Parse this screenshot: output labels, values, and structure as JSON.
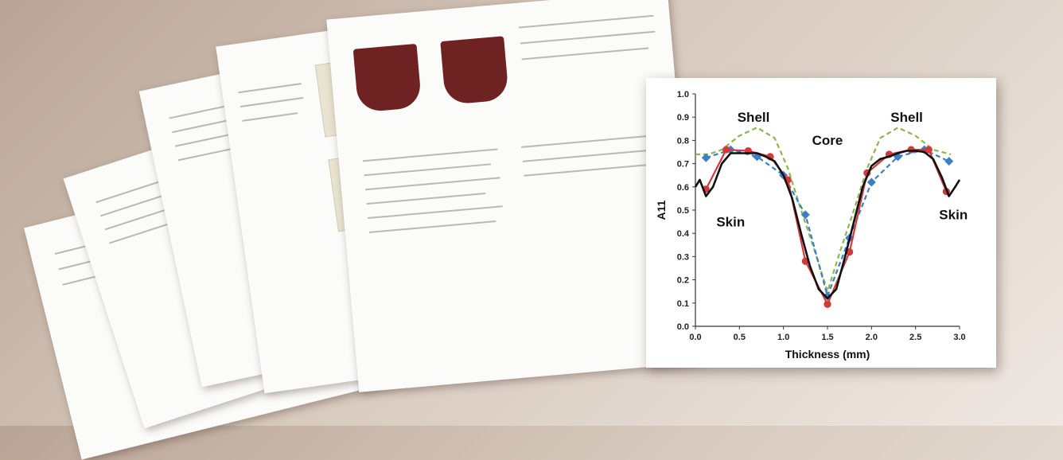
{
  "chart_data": {
    "type": "line",
    "xlabel": "Thickness (mm)",
    "ylabel": "A11",
    "xlim": [
      0,
      3.0
    ],
    "ylim": [
      0,
      1.0
    ],
    "xticks": [
      "0.0",
      "0.5",
      "1.0",
      "1.5",
      "2.0",
      "2.5",
      "3.0"
    ],
    "yticks": [
      "0.0",
      "0.1",
      "0.2",
      "0.3",
      "0.4",
      "0.5",
      "0.6",
      "0.7",
      "0.8",
      "0.9",
      "1.0"
    ],
    "grid": false,
    "annotations": [
      {
        "text": "Shell",
        "x": 0.66,
        "y": 0.88
      },
      {
        "text": "Shell",
        "x": 2.4,
        "y": 0.88
      },
      {
        "text": "Core",
        "x": 1.5,
        "y": 0.78
      },
      {
        "text": "Skin",
        "x": 0.4,
        "y": 0.43
      },
      {
        "text": "Skin",
        "x": 2.93,
        "y": 0.46
      }
    ],
    "series": [
      {
        "style": "dashed",
        "color": "#8ab84a",
        "x": [
          0.0,
          0.15,
          0.3,
          0.5,
          0.7,
          0.9,
          1.05,
          1.2,
          1.35,
          1.5,
          1.65,
          1.8,
          1.95,
          2.1,
          2.3,
          2.5,
          2.7,
          2.9
        ],
        "y": [
          0.74,
          0.74,
          0.76,
          0.82,
          0.855,
          0.81,
          0.68,
          0.5,
          0.33,
          0.15,
          0.33,
          0.5,
          0.68,
          0.81,
          0.855,
          0.82,
          0.76,
          0.74
        ]
      },
      {
        "style": "dashed",
        "color": "#3d7fc4",
        "marker": "diamond",
        "x": [
          0.12,
          0.4,
          0.7,
          1.0,
          1.25,
          1.5,
          1.75,
          2.0,
          2.3,
          2.6,
          2.88
        ],
        "y": [
          0.725,
          0.76,
          0.73,
          0.65,
          0.48,
          0.13,
          0.38,
          0.62,
          0.73,
          0.76,
          0.71
        ]
      },
      {
        "style": "solid",
        "color": "#d23a3a",
        "marker": "circle",
        "x": [
          0.12,
          0.35,
          0.6,
          0.85,
          1.05,
          1.25,
          1.5,
          1.75,
          1.95,
          2.2,
          2.45,
          2.65,
          2.85
        ],
        "y": [
          0.59,
          0.76,
          0.755,
          0.73,
          0.63,
          0.28,
          0.095,
          0.32,
          0.66,
          0.74,
          0.76,
          0.76,
          0.58
        ]
      },
      {
        "style": "solid",
        "color": "#111111",
        "x": [
          0.0,
          0.05,
          0.12,
          0.2,
          0.3,
          0.4,
          0.5,
          0.6,
          0.7,
          0.8,
          0.9,
          1.0,
          1.1,
          1.2,
          1.3,
          1.4,
          1.5,
          1.6,
          1.7,
          1.8,
          1.9,
          2.0,
          2.1,
          2.2,
          2.3,
          2.4,
          2.5,
          2.6,
          2.7,
          2.8,
          2.88,
          2.95,
          3.0
        ],
        "y": [
          0.6,
          0.63,
          0.56,
          0.6,
          0.7,
          0.745,
          0.745,
          0.745,
          0.745,
          0.73,
          0.71,
          0.65,
          0.55,
          0.4,
          0.26,
          0.16,
          0.12,
          0.16,
          0.3,
          0.45,
          0.6,
          0.69,
          0.72,
          0.73,
          0.745,
          0.755,
          0.755,
          0.75,
          0.72,
          0.64,
          0.56,
          0.6,
          0.63
        ]
      }
    ]
  }
}
